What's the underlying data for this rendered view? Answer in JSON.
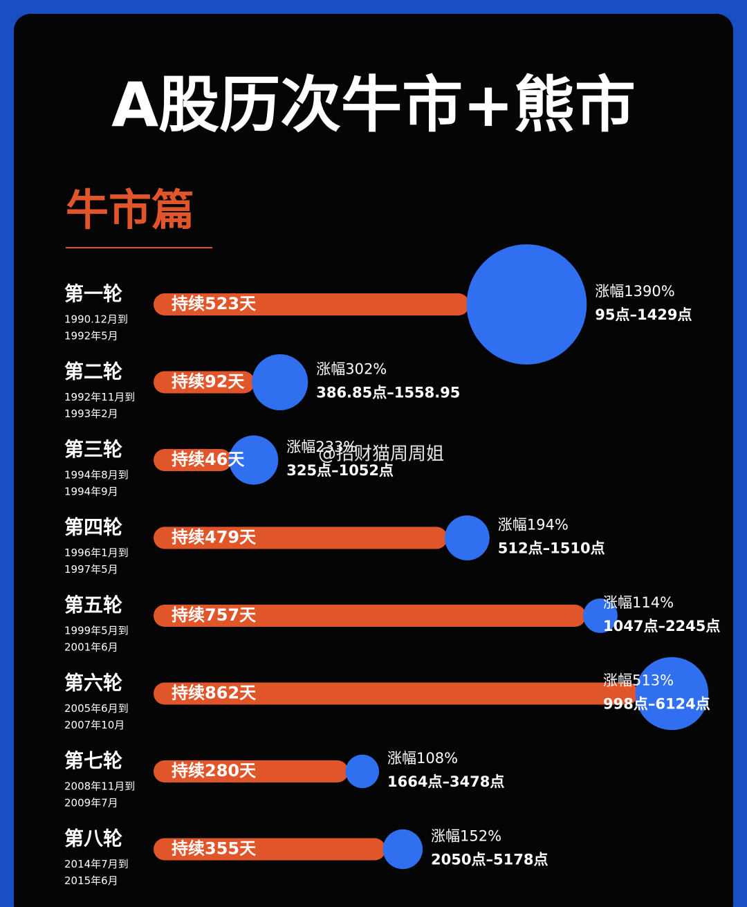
{
  "title": "A股历次牛市+熊市",
  "section": "牛市篇",
  "watermark": "@招财猫周周姐",
  "chart_data": {
    "type": "bar-bubble",
    "categories": [
      "第一轮",
      "第二轮",
      "第三轮",
      "第四轮",
      "第五轮",
      "第六轮",
      "第七轮",
      "第八轮"
    ],
    "periods": [
      [
        "1990.12月到",
        "1992年5月"
      ],
      [
        "1992年11月到",
        "1993年2月"
      ],
      [
        "1994年8月到",
        "1994年9月"
      ],
      [
        "1996年1月到",
        "1997年5月"
      ],
      [
        "1999年5月到",
        "2001年6月"
      ],
      [
        "2005年6月到",
        "2007年10月"
      ],
      [
        "2008年11月到",
        "2009年7月"
      ],
      [
        "2014年7月到",
        "2015年6月"
      ]
    ],
    "series": [
      {
        "color": "#e0552a",
        "values": [
          523,
          92,
          46,
          479,
          757,
          862,
          280,
          355
        ],
        "value_labels": [
          "持续523天",
          "持续92天",
          "持续46天",
          "持续479天",
          "持续757天",
          "持续862天",
          "持续280天",
          "持续355天"
        ]
      },
      {
        "color": "#2f6ff0",
        "values": [
          1390,
          302,
          233,
          194,
          114,
          513,
          108,
          152
        ],
        "value_labels": [
          "涨幅1390%",
          "涨幅302%",
          "涨幅233%",
          "涨幅194%",
          "涨幅114%",
          "涨幅513%",
          "涨幅108%",
          "涨幅152%"
        ]
      }
    ],
    "ranges": [
      "95点–1429点",
      "386.85点–1558.95",
      "325点–1052点",
      "512点–1510点",
      "1047点–2245点",
      "998点–6124点",
      "1664点–3478点",
      "2050点–5178点"
    ]
  }
}
